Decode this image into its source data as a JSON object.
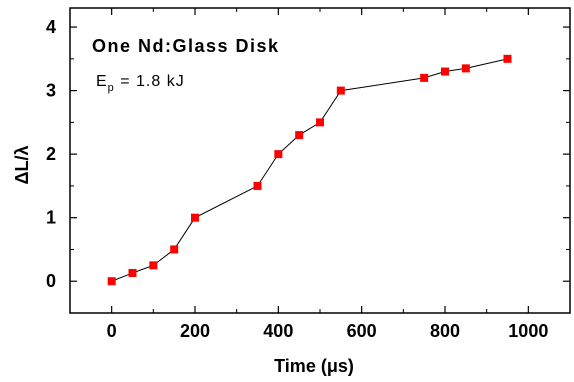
{
  "chart_data": {
    "type": "line",
    "xlabel": "Time (μs)",
    "ylabel": "ΔL/λ",
    "xlim": [
      -100,
      1100
    ],
    "ylim": [
      -0.5,
      4.3
    ],
    "x_ticks": [
      0,
      200,
      400,
      600,
      800,
      1000
    ],
    "y_ticks": [
      0,
      1,
      2,
      3,
      4
    ],
    "grid": false,
    "marker": "square",
    "marker_color": "#ff0000",
    "line_color": "#000000",
    "annotations": {
      "title": "One Nd:Glass Disk",
      "energy_prefix": "E",
      "energy_subscript": "p",
      "energy_value": " = 1.8 kJ"
    },
    "series": [
      {
        "x": [
          0,
          50,
          100,
          150,
          200,
          350,
          400,
          450,
          500,
          550,
          750,
          800,
          850,
          950
        ],
        "y": [
          0,
          0.13,
          0.25,
          0.5,
          1.0,
          1.5,
          2.0,
          2.3,
          2.5,
          3.0,
          3.2,
          3.3,
          3.35,
          3.5
        ]
      }
    ]
  }
}
